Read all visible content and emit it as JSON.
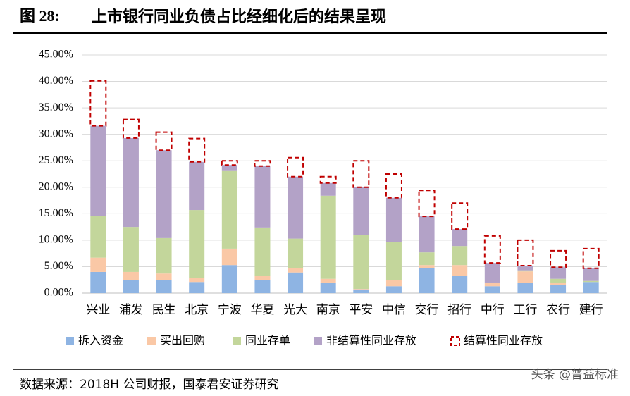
{
  "figure_label": "图 28:",
  "source": "数据来源：2018H 公司财报，国泰君安证券研究",
  "watermark": "头条 @普益标准",
  "chart_data": {
    "type": "stacked_bar",
    "title": "上市银行同业负债占比经细化后的结果呈现",
    "categories": [
      "兴业",
      "浦发",
      "民生",
      "北京",
      "宁波",
      "华夏",
      "光大",
      "南京",
      "平安",
      "中信",
      "交行",
      "招行",
      "中行",
      "工行",
      "农行",
      "建行"
    ],
    "series": [
      {
        "name": "拆入资金",
        "color": "#8eb4e3",
        "values": [
          4.0,
          2.4,
          2.4,
          2.1,
          5.3,
          2.4,
          3.9,
          2.0,
          0.7,
          1.3,
          4.7,
          3.2,
          1.3,
          1.9,
          1.5,
          2.1
        ]
      },
      {
        "name": "买出回购",
        "color": "#fac8a6",
        "values": [
          2.7,
          1.6,
          1.3,
          0.7,
          3.1,
          0.8,
          0.8,
          0.7,
          0.1,
          1.1,
          0.6,
          2.1,
          0.6,
          2.2,
          0.5,
          0
        ]
      },
      {
        "name": "同业存单",
        "color": "#c3d69b",
        "values": [
          7.9,
          8.5,
          6.7,
          12.9,
          14.8,
          9.2,
          5.6,
          15.7,
          10.2,
          7.2,
          2.4,
          3.6,
          0.1,
          0.2,
          0.7,
          0.2
        ]
      },
      {
        "name": "非结算性同业存放",
        "color": "#b3a2c7",
        "values": [
          17.0,
          16.8,
          16.6,
          9.1,
          1.0,
          11.6,
          11.7,
          2.4,
          9.0,
          8.4,
          6.8,
          3.2,
          3.7,
          0.9,
          2.2,
          2.4
        ]
      },
      {
        "name": "结算性同业存放",
        "color": "#c00000",
        "dashed": true,
        "values": [
          8.5,
          3.5,
          3.4,
          4.4,
          0.8,
          1.0,
          3.6,
          1.2,
          5.0,
          4.5,
          4.9,
          4.9,
          5.1,
          4.8,
          3.1,
          3.7
        ]
      }
    ],
    "ylim": [
      0,
      45
    ],
    "yticks": [
      {
        "value": 0,
        "label": "0.00%"
      },
      {
        "value": 5,
        "label": "5.00%"
      },
      {
        "value": 10,
        "label": "10.00%"
      },
      {
        "value": 15,
        "label": "15.00%"
      },
      {
        "value": 20,
        "label": "20.00%"
      },
      {
        "value": 25,
        "label": "25.00%"
      },
      {
        "value": 30,
        "label": "30.00%"
      },
      {
        "value": 35,
        "label": "35.00%"
      },
      {
        "value": 40,
        "label": "40.00%"
      },
      {
        "value": 45,
        "label": "45.00%"
      }
    ],
    "grid": true
  }
}
